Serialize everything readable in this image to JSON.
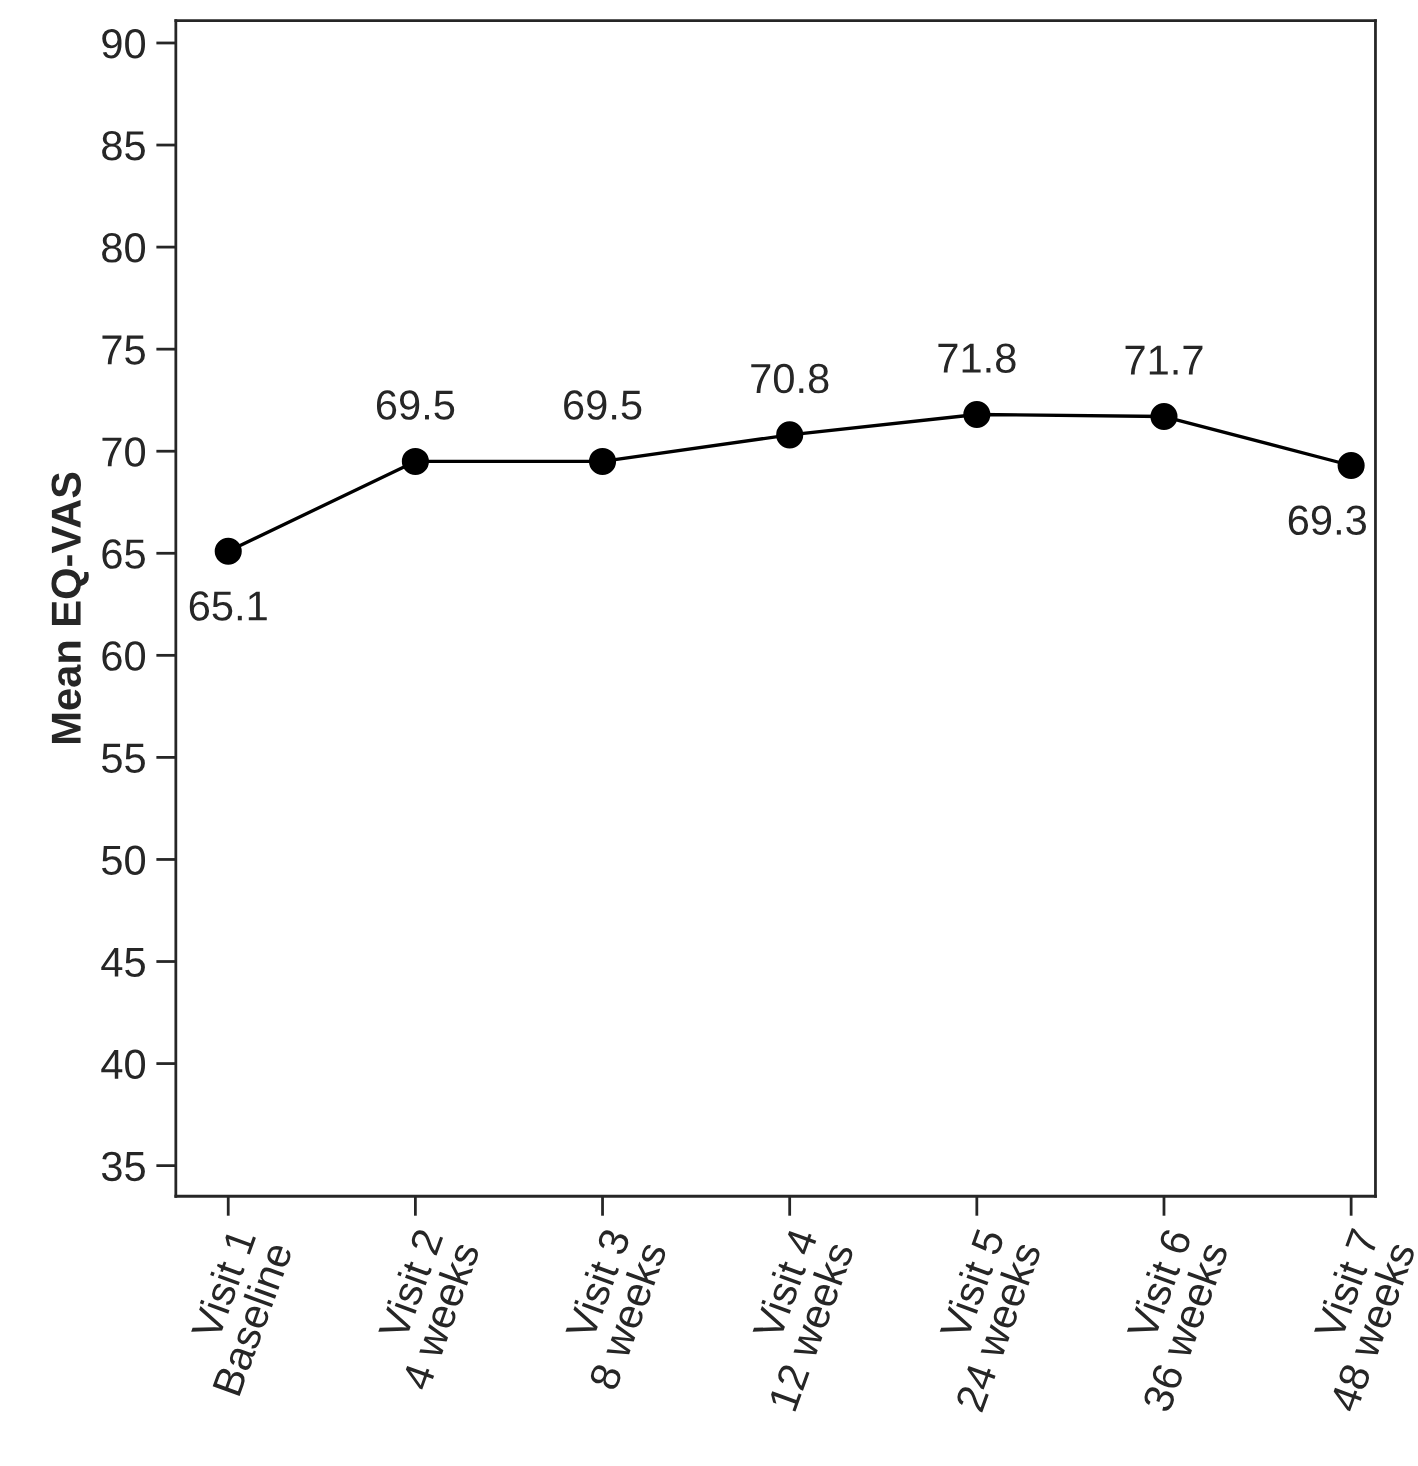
{
  "chart_data": {
    "type": "line",
    "ylabel": "Mean EQ-VAS",
    "categories": [
      "Visit 1\nBaseline",
      "Visit 2\n4 weeks",
      "Visit 3\n8 weeks",
      "Visit 4\n12 weeks",
      "Visit 5\n24 weeks",
      "Visit 6\n36 weeks",
      "Visit 7\n48 weeks"
    ],
    "series": [
      {
        "color": "#000000",
        "values": [
          65.1,
          69.5,
          69.5,
          70.8,
          71.8,
          71.7,
          69.3
        ]
      }
    ],
    "ylim": [
      33.5,
      91.1
    ],
    "yticks": [
      35,
      40,
      45,
      50,
      55,
      60,
      65,
      70,
      75,
      80,
      85,
      90
    ],
    "marker": "circle",
    "line_style": "solid",
    "data_labels": true,
    "grid": false
  }
}
